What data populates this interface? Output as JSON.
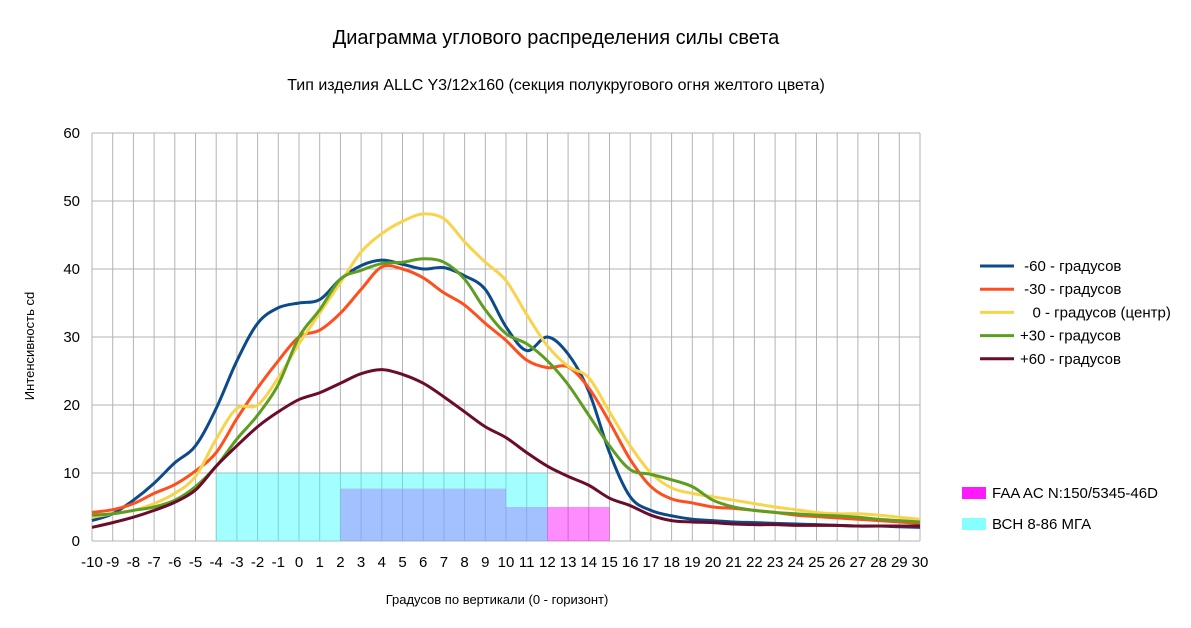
{
  "chart_data": {
    "type": "line",
    "title": "Диаграмма углового распределения силы света",
    "subtitle": "Тип изделия ALLC Y3/12x160 (секция полукругового огня желтого цвета)",
    "xlabel": "Градусов по вертикали (0 - горизонт)",
    "ylabel": "Интенсивность cd",
    "x": [
      -10,
      -9,
      -8,
      -7,
      -6,
      -5,
      -4,
      -3,
      -2,
      -1,
      0,
      1,
      2,
      3,
      4,
      5,
      6,
      7,
      8,
      9,
      10,
      11,
      12,
      13,
      14,
      15,
      16,
      17,
      18,
      19,
      20,
      21,
      22,
      23,
      24,
      25,
      26,
      27,
      28,
      29,
      30
    ],
    "xlim": [
      -10,
      30
    ],
    "ylim": [
      0,
      60
    ],
    "yticks": [
      0,
      10,
      20,
      30,
      40,
      50,
      60
    ],
    "grid": true,
    "legend_position": "right",
    "series": [
      {
        "name": " -60 - градусов",
        "color": "#0d4a8a",
        "values": [
          3,
          4,
          6,
          8.5,
          11.5,
          14,
          19.5,
          26.5,
          32,
          34.3,
          35,
          35.5,
          38.5,
          40.5,
          41.3,
          40.7,
          40,
          40.2,
          39,
          37,
          31.5,
          28,
          30,
          27.5,
          22,
          13,
          6.5,
          4.5,
          3.7,
          3.2,
          3,
          2.8,
          2.7,
          2.6,
          2.5,
          2.4,
          2.3,
          2.2,
          2.2,
          2.1,
          2
        ]
      },
      {
        "name": " -30 - градусов",
        "color": "#ff4f1f",
        "values": [
          4.2,
          4.6,
          5.5,
          7,
          8.3,
          10.3,
          13,
          18,
          22.5,
          26.5,
          30,
          31,
          33.5,
          37,
          40.3,
          40,
          38.7,
          36.5,
          34.7,
          32,
          29.5,
          26.6,
          25.5,
          25.6,
          22.5,
          17.5,
          12,
          8,
          6.2,
          5.6,
          5,
          4.8,
          4.5,
          4.2,
          3.8,
          3.6,
          3.4,
          3.2,
          3,
          2.8,
          2.6
        ]
      },
      {
        "name": "   0 - градусов (центр)",
        "color": "#f8d44c",
        "values": [
          3.5,
          4,
          4.5,
          5.5,
          7,
          9.5,
          15,
          19.5,
          20,
          24,
          29,
          33.5,
          38,
          42.5,
          45.2,
          47,
          48.1,
          47.4,
          44,
          41,
          38.3,
          33.3,
          28.7,
          25.7,
          24,
          19,
          14,
          10,
          7.8,
          7,
          6.5,
          6,
          5.5,
          5,
          4.6,
          4.2,
          4,
          4,
          3.8,
          3.5,
          3.2
        ]
      },
      {
        "name": "+30 - градусов",
        "color": "#5d9e22",
        "values": [
          3.8,
          4,
          4.5,
          5,
          6,
          8,
          11,
          15,
          18.5,
          23,
          30,
          34,
          38.5,
          39.8,
          40.8,
          41,
          41.5,
          41,
          38.5,
          34,
          30.5,
          29,
          26.5,
          23,
          18.5,
          14,
          10.5,
          9.8,
          9,
          8,
          6,
          5,
          4.5,
          4.2,
          4,
          3.8,
          3.7,
          3.5,
          3.2,
          3,
          2.8
        ]
      },
      {
        "name": "+60 - градусов",
        "color": "#6a0c2a",
        "values": [
          2,
          2.7,
          3.5,
          4.5,
          5.7,
          7.5,
          11,
          14,
          16.8,
          19,
          20.8,
          21.8,
          23.2,
          24.6,
          25.2,
          24.5,
          23.2,
          21.2,
          19,
          16.8,
          15.2,
          13,
          11,
          9.5,
          8.2,
          6.3,
          5.2,
          3.8,
          3,
          2.8,
          2.7,
          2.5,
          2.4,
          2.4,
          2.3,
          2.3,
          2.3,
          2.2,
          2.2,
          2.2,
          2.2
        ]
      }
    ],
    "regions": [
      {
        "name": "FAA AC N:150/5345-46D",
        "color": "#ff00ff",
        "steps": [
          {
            "x0": 2,
            "x1": 10,
            "y": 7.7
          },
          {
            "x0": 10,
            "x1": 15,
            "y": 5
          }
        ]
      },
      {
        "name": "ВСН 8-86 МГА",
        "color": "#33ffff",
        "steps": [
          {
            "x0": -4,
            "x1": 12,
            "y": 10
          }
        ]
      }
    ]
  }
}
